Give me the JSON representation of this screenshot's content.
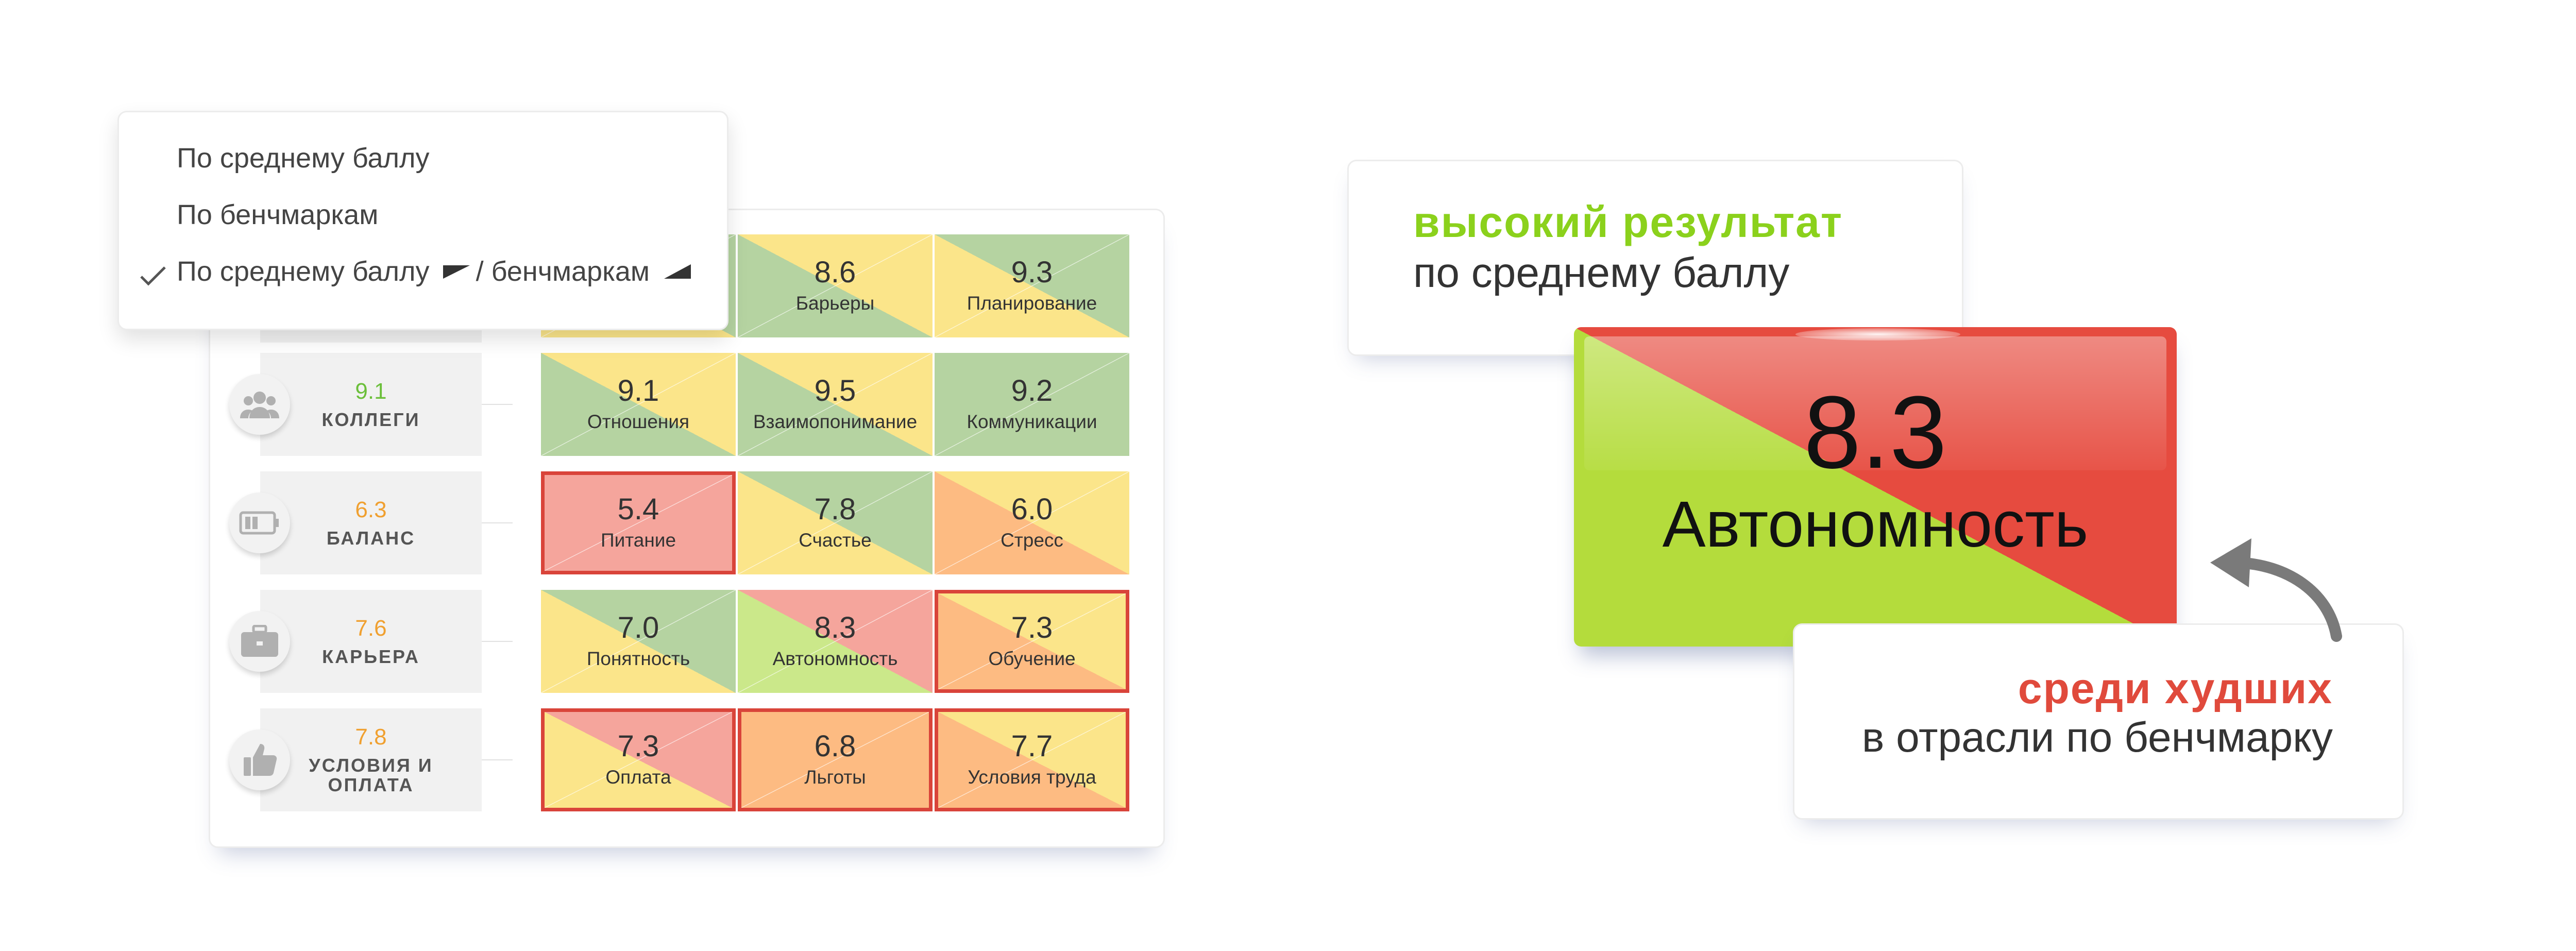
{
  "dropdown": {
    "items": [
      {
        "label": "По среднему баллу"
      },
      {
        "label": "По бенчмаркам"
      },
      {
        "label_a": "По среднему баллу",
        "label_sep": "/ бенчмаркам",
        "selected": true
      }
    ]
  },
  "categories": [
    {
      "score": "9.1",
      "name": "КОЛЛЕГИ",
      "score_color": "#6bbf3a",
      "icon": "people-icon"
    },
    {
      "score": "6.3",
      "name": "БАЛАНС",
      "score_color": "#f0a030",
      "icon": "battery-icon"
    },
    {
      "score": "7.6",
      "name": "КАРЬЕРА",
      "score_color": "#f0a030",
      "icon": "briefcase-icon"
    },
    {
      "score": "7.8",
      "name_line1": "УСЛОВИЯ И",
      "name_line2": "ОПЛАТА",
      "score_color": "#f0a030",
      "icon": "thumbs-up-icon"
    }
  ],
  "grid": [
    [
      {
        "value": "",
        "label": ""
      },
      {
        "value": "8.6",
        "label": "Барьеры"
      },
      {
        "value": "9.3",
        "label": "Планирование"
      }
    ],
    [
      {
        "value": "9.1",
        "label": "Отношения"
      },
      {
        "value": "9.5",
        "label": "Взаимопонимание"
      },
      {
        "value": "9.2",
        "label": "Коммуникации"
      }
    ],
    [
      {
        "value": "5.4",
        "label": "Питание"
      },
      {
        "value": "7.8",
        "label": "Счастье"
      },
      {
        "value": "6.0",
        "label": "Стресс"
      }
    ],
    [
      {
        "value": "7.0",
        "label": "Понятность"
      },
      {
        "value": "8.3",
        "label": "Автономность"
      },
      {
        "value": "7.3",
        "label": "Обучение"
      }
    ],
    [
      {
        "value": "7.3",
        "label": "Оплата"
      },
      {
        "value": "6.8",
        "label": "Льготы"
      },
      {
        "value": "7.7",
        "label": "Условия труда"
      }
    ]
  ],
  "colors": {
    "green": "#b5d3a1",
    "yellow": "#fbe58a",
    "light_green": "#cbe88a",
    "pink": "#f5a59c",
    "orange": "#fdbb82",
    "border_red": "#d9443a"
  },
  "callout_top": {
    "highlight": "высокий результат",
    "text": "по среднему баллу"
  },
  "callout_bottom": {
    "highlight": "среди худших",
    "text": "в отрасли по бенчмарку"
  },
  "big_tile": {
    "value": "8.3",
    "label": "Автономность"
  }
}
